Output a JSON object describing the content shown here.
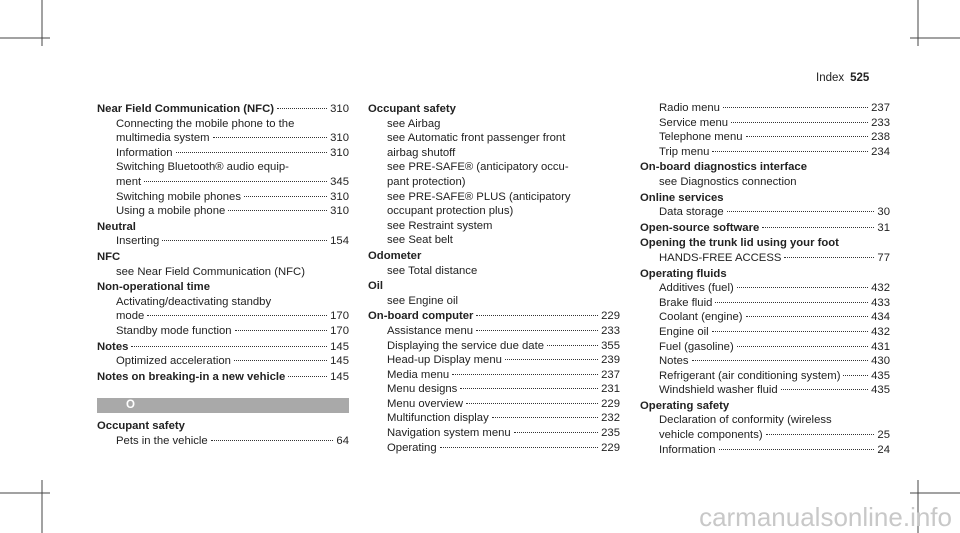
{
  "header": {
    "section": "Index",
    "page": "525"
  },
  "columns": [
    [
      {
        "text": "Near Field Communication (NFC)",
        "page": "310",
        "bold": true
      },
      {
        "text": "Connecting the mobile phone to the"
      },
      {
        "text": "multimedia system",
        "page": "310"
      },
      {
        "text": "Information",
        "page": "310"
      },
      {
        "text": "Switching Bluetooth® audio equip-"
      },
      {
        "text": "ment",
        "page": "345"
      },
      {
        "text": "Switching mobile phones",
        "page": "310"
      },
      {
        "text": "Using a mobile phone",
        "page": "310"
      },
      {
        "text": "Neutral",
        "bold": true
      },
      {
        "text": "Inserting",
        "page": "154"
      },
      {
        "text": "NFC",
        "bold": true
      },
      {
        "text": "see Near Field Communication (NFC)"
      },
      {
        "text": "Non-operational time",
        "bold": true
      },
      {
        "text": "Activating/deactivating standby"
      },
      {
        "text": "mode",
        "page": "170"
      },
      {
        "text": "Standby mode function",
        "page": "170"
      },
      {
        "text": "Notes",
        "page": "145",
        "bold": true
      },
      {
        "text": "Optimized acceleration",
        "page": "145"
      },
      {
        "text": "Notes on breaking-in a new vehicle",
        "page": "145",
        "bold": true
      },
      {
        "text": "O",
        "section": true
      },
      {
        "text": "Occupant safety",
        "bold": true
      },
      {
        "text": "Pets in the vehicle",
        "page": "64"
      }
    ],
    [
      {
        "text": "Occupant safety",
        "bold": true
      },
      {
        "text": "see Airbag"
      },
      {
        "text": "see Automatic front passenger front"
      },
      {
        "text": "airbag shutoff"
      },
      {
        "text": "see PRE-SAFE® (anticipatory occu-"
      },
      {
        "text": "pant protection)"
      },
      {
        "text": "see PRE-SAFE® PLUS (anticipatory"
      },
      {
        "text": "occupant protection plus)"
      },
      {
        "text": "see Restraint system"
      },
      {
        "text": "see Seat belt"
      },
      {
        "text": "Odometer",
        "bold": true
      },
      {
        "text": "see Total distance"
      },
      {
        "text": "Oil",
        "bold": true
      },
      {
        "text": "see Engine oil"
      },
      {
        "text": "On-board computer",
        "page": "229",
        "bold": true
      },
      {
        "text": "Assistance menu",
        "page": "233"
      },
      {
        "text": "Displaying the service due date",
        "page": "355"
      },
      {
        "text": "Head-up Display menu",
        "page": "239"
      },
      {
        "text": "Media menu",
        "page": "237"
      },
      {
        "text": "Menu designs",
        "page": "231"
      },
      {
        "text": "Menu overview",
        "page": "229"
      },
      {
        "text": "Multifunction display",
        "page": "232"
      },
      {
        "text": "Navigation system menu",
        "page": "235"
      },
      {
        "text": "Operating",
        "page": "229"
      }
    ],
    [
      {
        "text": "Radio menu",
        "page": "237"
      },
      {
        "text": "Service menu",
        "page": "233"
      },
      {
        "text": "Telephone menu",
        "page": "238"
      },
      {
        "text": "Trip menu",
        "page": "234"
      },
      {
        "text": "On-board diagnostics interface",
        "bold": true
      },
      {
        "text": "see Diagnostics connection"
      },
      {
        "text": "Online services",
        "bold": true
      },
      {
        "text": "Data storage",
        "page": "30"
      },
      {
        "text": "Open-source software",
        "page": "31",
        "bold": true
      },
      {
        "text": "Opening the trunk lid using your foot",
        "bold": true
      },
      {
        "text": "HANDS-FREE ACCESS",
        "page": "77"
      },
      {
        "text": "Operating fluids",
        "bold": true
      },
      {
        "text": "Additives (fuel)",
        "page": "432"
      },
      {
        "text": "Brake fluid",
        "page": "433"
      },
      {
        "text": "Coolant (engine)",
        "page": "434"
      },
      {
        "text": "Engine oil",
        "page": "432"
      },
      {
        "text": "Fuel (gasoline)",
        "page": "431"
      },
      {
        "text": "Notes",
        "page": "430"
      },
      {
        "text": "Refrigerant (air conditioning system)",
        "page": "435"
      },
      {
        "text": "Windshield washer fluid",
        "page": "435"
      },
      {
        "text": "Operating safety",
        "bold": true
      },
      {
        "text": "Declaration of conformity (wireless"
      },
      {
        "text": "vehicle components)",
        "page": "25"
      },
      {
        "text": "Information",
        "page": "24"
      }
    ]
  ],
  "watermark": "carmanualsonline.info"
}
